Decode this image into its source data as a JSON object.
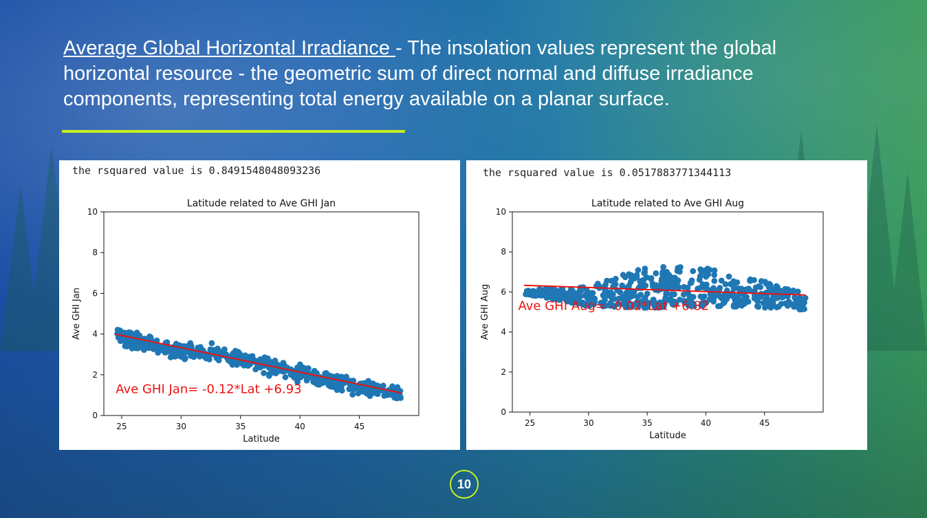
{
  "slide": {
    "title_underlined": "Average Global Horizontal Irradiance ",
    "title_rest": "- The insolation values represent the global horizontal resource - the geometric sum of direct normal and diffuse irradiance components, representing total energy available on a planar surface.",
    "page_number": "10",
    "accent_color": "#c8f01e"
  },
  "chart_data": [
    {
      "type": "scatter",
      "rsquared_text": "the rsquared value is 0.8491548048093236",
      "title": "Latitude related to Ave GHI Jan",
      "xlabel": "Latitude",
      "ylabel": "Ave GHI Jan",
      "xlim": [
        23.5,
        50
      ],
      "ylim": [
        0,
        10
      ],
      "xticks": [
        25,
        30,
        35,
        40,
        45
      ],
      "yticks": [
        0,
        2,
        4,
        6,
        8,
        10
      ],
      "point_color": "#1f77b4",
      "trend_color": "#ee1111",
      "regression": {
        "slope": -0.12,
        "intercept": 6.93,
        "x_range": [
          24.5,
          48.5
        ]
      },
      "annotation": "Ave GHI Jan= -0.12*Lat +6.93",
      "annotation_at": {
        "x": 24.5,
        "y": 1.1
      },
      "scatter_model": {
        "x_range": [
          24.5,
          48.5
        ],
        "centers": [
          [
            24.5,
            3.9
          ],
          [
            30,
            3.15
          ],
          [
            33,
            3.05
          ],
          [
            36,
            2.65
          ],
          [
            40,
            2.05
          ],
          [
            44,
            1.5
          ],
          [
            48.5,
            1.05
          ]
        ],
        "spread": 0.22
      }
    },
    {
      "type": "scatter",
      "rsquared_text": "the rsquared value is 0.0517883771344113",
      "title": "Latitude related to Ave GHI Aug",
      "xlabel": "Latitude",
      "ylabel": "Ave GHI Aug",
      "xlim": [
        23.5,
        50
      ],
      "ylim": [
        0,
        10
      ],
      "xticks": [
        25,
        30,
        35,
        40,
        45
      ],
      "yticks": [
        0,
        2,
        4,
        6,
        8,
        10
      ],
      "point_color": "#1f77b4",
      "trend_color": "#ee1111",
      "regression": {
        "slope": -0.02,
        "intercept": 6.82,
        "x_range": [
          24.5,
          48.5
        ]
      },
      "annotation": "Ave GHI Aug= -0.02*Lat +6.82",
      "annotation_at": {
        "x": 24.0,
        "y": 5.1
      },
      "scatter_model": {
        "x_range": [
          24.5,
          48.5
        ],
        "lower": [
          [
            24.5,
            5.9
          ],
          [
            30,
            5.3
          ],
          [
            35,
            5.2
          ],
          [
            40,
            5.3
          ],
          [
            45,
            5.2
          ],
          [
            48.5,
            5.1
          ]
        ],
        "upper": [
          [
            24.5,
            6.1
          ],
          [
            30,
            6.3
          ],
          [
            35,
            7.3
          ],
          [
            40,
            7.2
          ],
          [
            45,
            6.6
          ],
          [
            48.5,
            5.9
          ]
        ]
      }
    }
  ]
}
